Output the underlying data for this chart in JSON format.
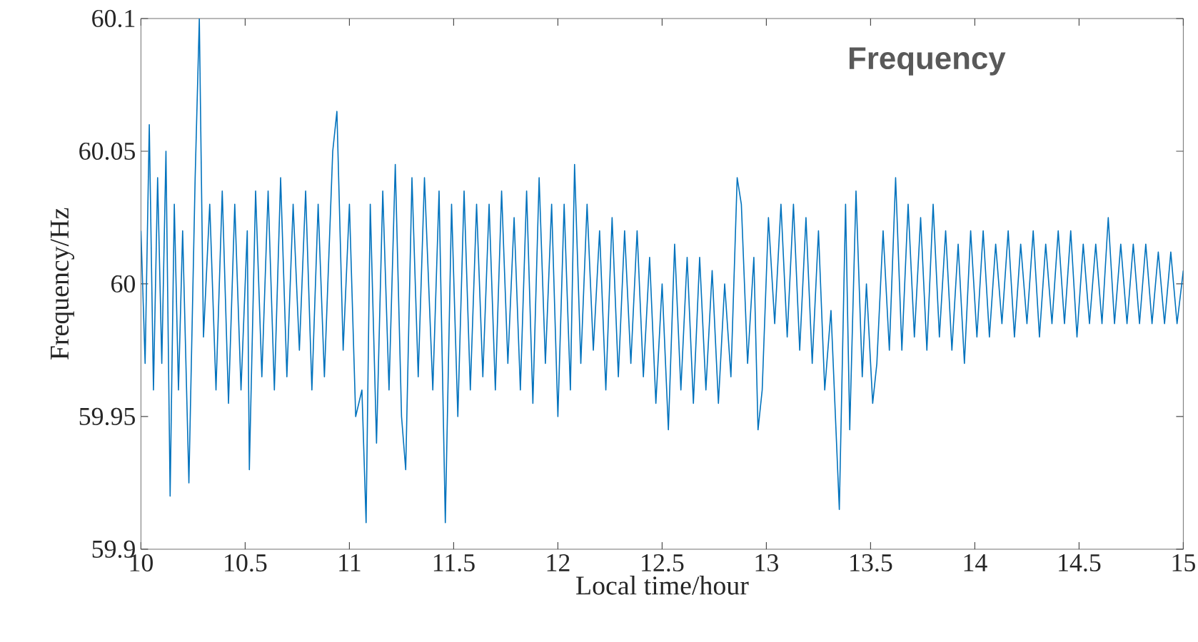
{
  "chart_data": {
    "type": "line",
    "xlabel": "Local time/hour",
    "ylabel": "Frequency/Hz",
    "annotations": [
      "Frequency"
    ],
    "color": "#0072bd",
    "xlim": [
      10,
      15
    ],
    "ylim": [
      59.9,
      60.1
    ],
    "xticks": [
      10,
      10.5,
      11,
      11.5,
      12,
      12.5,
      13,
      13.5,
      14,
      14.5,
      15
    ],
    "yticks": [
      59.9,
      59.95,
      60,
      60.05,
      60.1
    ],
    "x": [
      10.0,
      10.02,
      10.04,
      10.06,
      10.08,
      10.1,
      10.12,
      10.14,
      10.16,
      10.18,
      10.2,
      10.23,
      10.26,
      10.28,
      10.3,
      10.33,
      10.36,
      10.39,
      10.42,
      10.45,
      10.48,
      10.51,
      10.52,
      10.55,
      10.58,
      10.61,
      10.64,
      10.67,
      10.7,
      10.73,
      10.76,
      10.79,
      10.82,
      10.85,
      10.88,
      10.92,
      10.94,
      10.97,
      11.0,
      11.03,
      11.06,
      11.08,
      11.1,
      11.13,
      11.16,
      11.19,
      11.22,
      11.25,
      11.27,
      11.3,
      11.33,
      11.36,
      11.4,
      11.43,
      11.46,
      11.49,
      11.52,
      11.55,
      11.58,
      11.61,
      11.64,
      11.67,
      11.7,
      11.73,
      11.76,
      11.79,
      11.82,
      11.85,
      11.88,
      11.91,
      11.94,
      11.97,
      12.0,
      12.03,
      12.06,
      12.08,
      12.11,
      12.14,
      12.17,
      12.2,
      12.23,
      12.26,
      12.29,
      12.32,
      12.35,
      12.38,
      12.41,
      12.44,
      12.47,
      12.5,
      12.53,
      12.56,
      12.59,
      12.62,
      12.65,
      12.68,
      12.71,
      12.74,
      12.77,
      12.8,
      12.83,
      12.86,
      12.88,
      12.91,
      12.94,
      12.96,
      12.98,
      13.01,
      13.04,
      13.07,
      13.1,
      13.13,
      13.16,
      13.19,
      13.22,
      13.25,
      13.28,
      13.31,
      13.35,
      13.38,
      13.4,
      13.43,
      13.46,
      13.48,
      13.51,
      13.53,
      13.56,
      13.59,
      13.62,
      13.65,
      13.68,
      13.71,
      13.74,
      13.77,
      13.8,
      13.83,
      13.86,
      13.89,
      13.92,
      13.95,
      13.98,
      14.01,
      14.04,
      14.07,
      14.1,
      14.13,
      14.16,
      14.19,
      14.22,
      14.25,
      14.28,
      14.31,
      14.34,
      14.37,
      14.4,
      14.43,
      14.46,
      14.49,
      14.52,
      14.55,
      14.58,
      14.61,
      14.64,
      14.67,
      14.7,
      14.73,
      14.76,
      14.79,
      14.82,
      14.85,
      14.88,
      14.91,
      14.94,
      14.97,
      15.0
    ],
    "values": [
      60.02,
      59.97,
      60.06,
      59.96,
      60.04,
      59.97,
      60.05,
      59.92,
      60.03,
      59.96,
      60.02,
      59.925,
      60.04,
      60.1,
      59.98,
      60.03,
      59.96,
      60.035,
      59.955,
      60.03,
      59.96,
      60.02,
      59.93,
      60.035,
      59.965,
      60.035,
      59.96,
      60.04,
      59.965,
      60.03,
      59.975,
      60.035,
      59.96,
      60.03,
      59.965,
      60.05,
      60.065,
      59.975,
      60.03,
      59.95,
      59.96,
      59.91,
      60.03,
      59.94,
      60.035,
      59.96,
      60.045,
      59.95,
      59.93,
      60.04,
      59.965,
      60.04,
      59.96,
      60.035,
      59.91,
      60.03,
      59.95,
      60.035,
      59.96,
      60.03,
      59.965,
      60.03,
      59.96,
      60.035,
      59.97,
      60.025,
      59.96,
      60.035,
      59.955,
      60.04,
      59.97,
      60.03,
      59.95,
      60.03,
      59.96,
      60.045,
      59.97,
      60.03,
      59.975,
      60.02,
      59.96,
      60.025,
      59.965,
      60.02,
      59.97,
      60.02,
      59.965,
      60.01,
      59.955,
      60.0,
      59.945,
      60.015,
      59.96,
      60.01,
      59.955,
      60.01,
      59.96,
      60.005,
      59.955,
      60.0,
      59.965,
      60.04,
      60.03,
      59.97,
      60.01,
      59.945,
      59.96,
      60.025,
      59.985,
      60.03,
      59.98,
      60.03,
      59.975,
      60.025,
      59.97,
      60.02,
      59.96,
      59.99,
      59.915,
      60.03,
      59.945,
      60.035,
      59.965,
      60.0,
      59.955,
      59.97,
      60.02,
      59.975,
      60.04,
      59.975,
      60.03,
      59.98,
      60.025,
      59.975,
      60.03,
      59.98,
      60.02,
      59.975,
      60.015,
      59.97,
      60.02,
      59.98,
      60.02,
      59.98,
      60.015,
      59.985,
      60.02,
      59.98,
      60.015,
      59.985,
      60.02,
      59.98,
      60.015,
      59.985,
      60.02,
      59.985,
      60.02,
      59.98,
      60.015,
      59.985,
      60.015,
      59.985,
      60.025,
      59.985,
      60.015,
      59.985,
      60.015,
      59.985,
      60.015,
      59.985,
      60.012,
      59.985,
      60.012,
      59.985,
      60.005
    ]
  }
}
